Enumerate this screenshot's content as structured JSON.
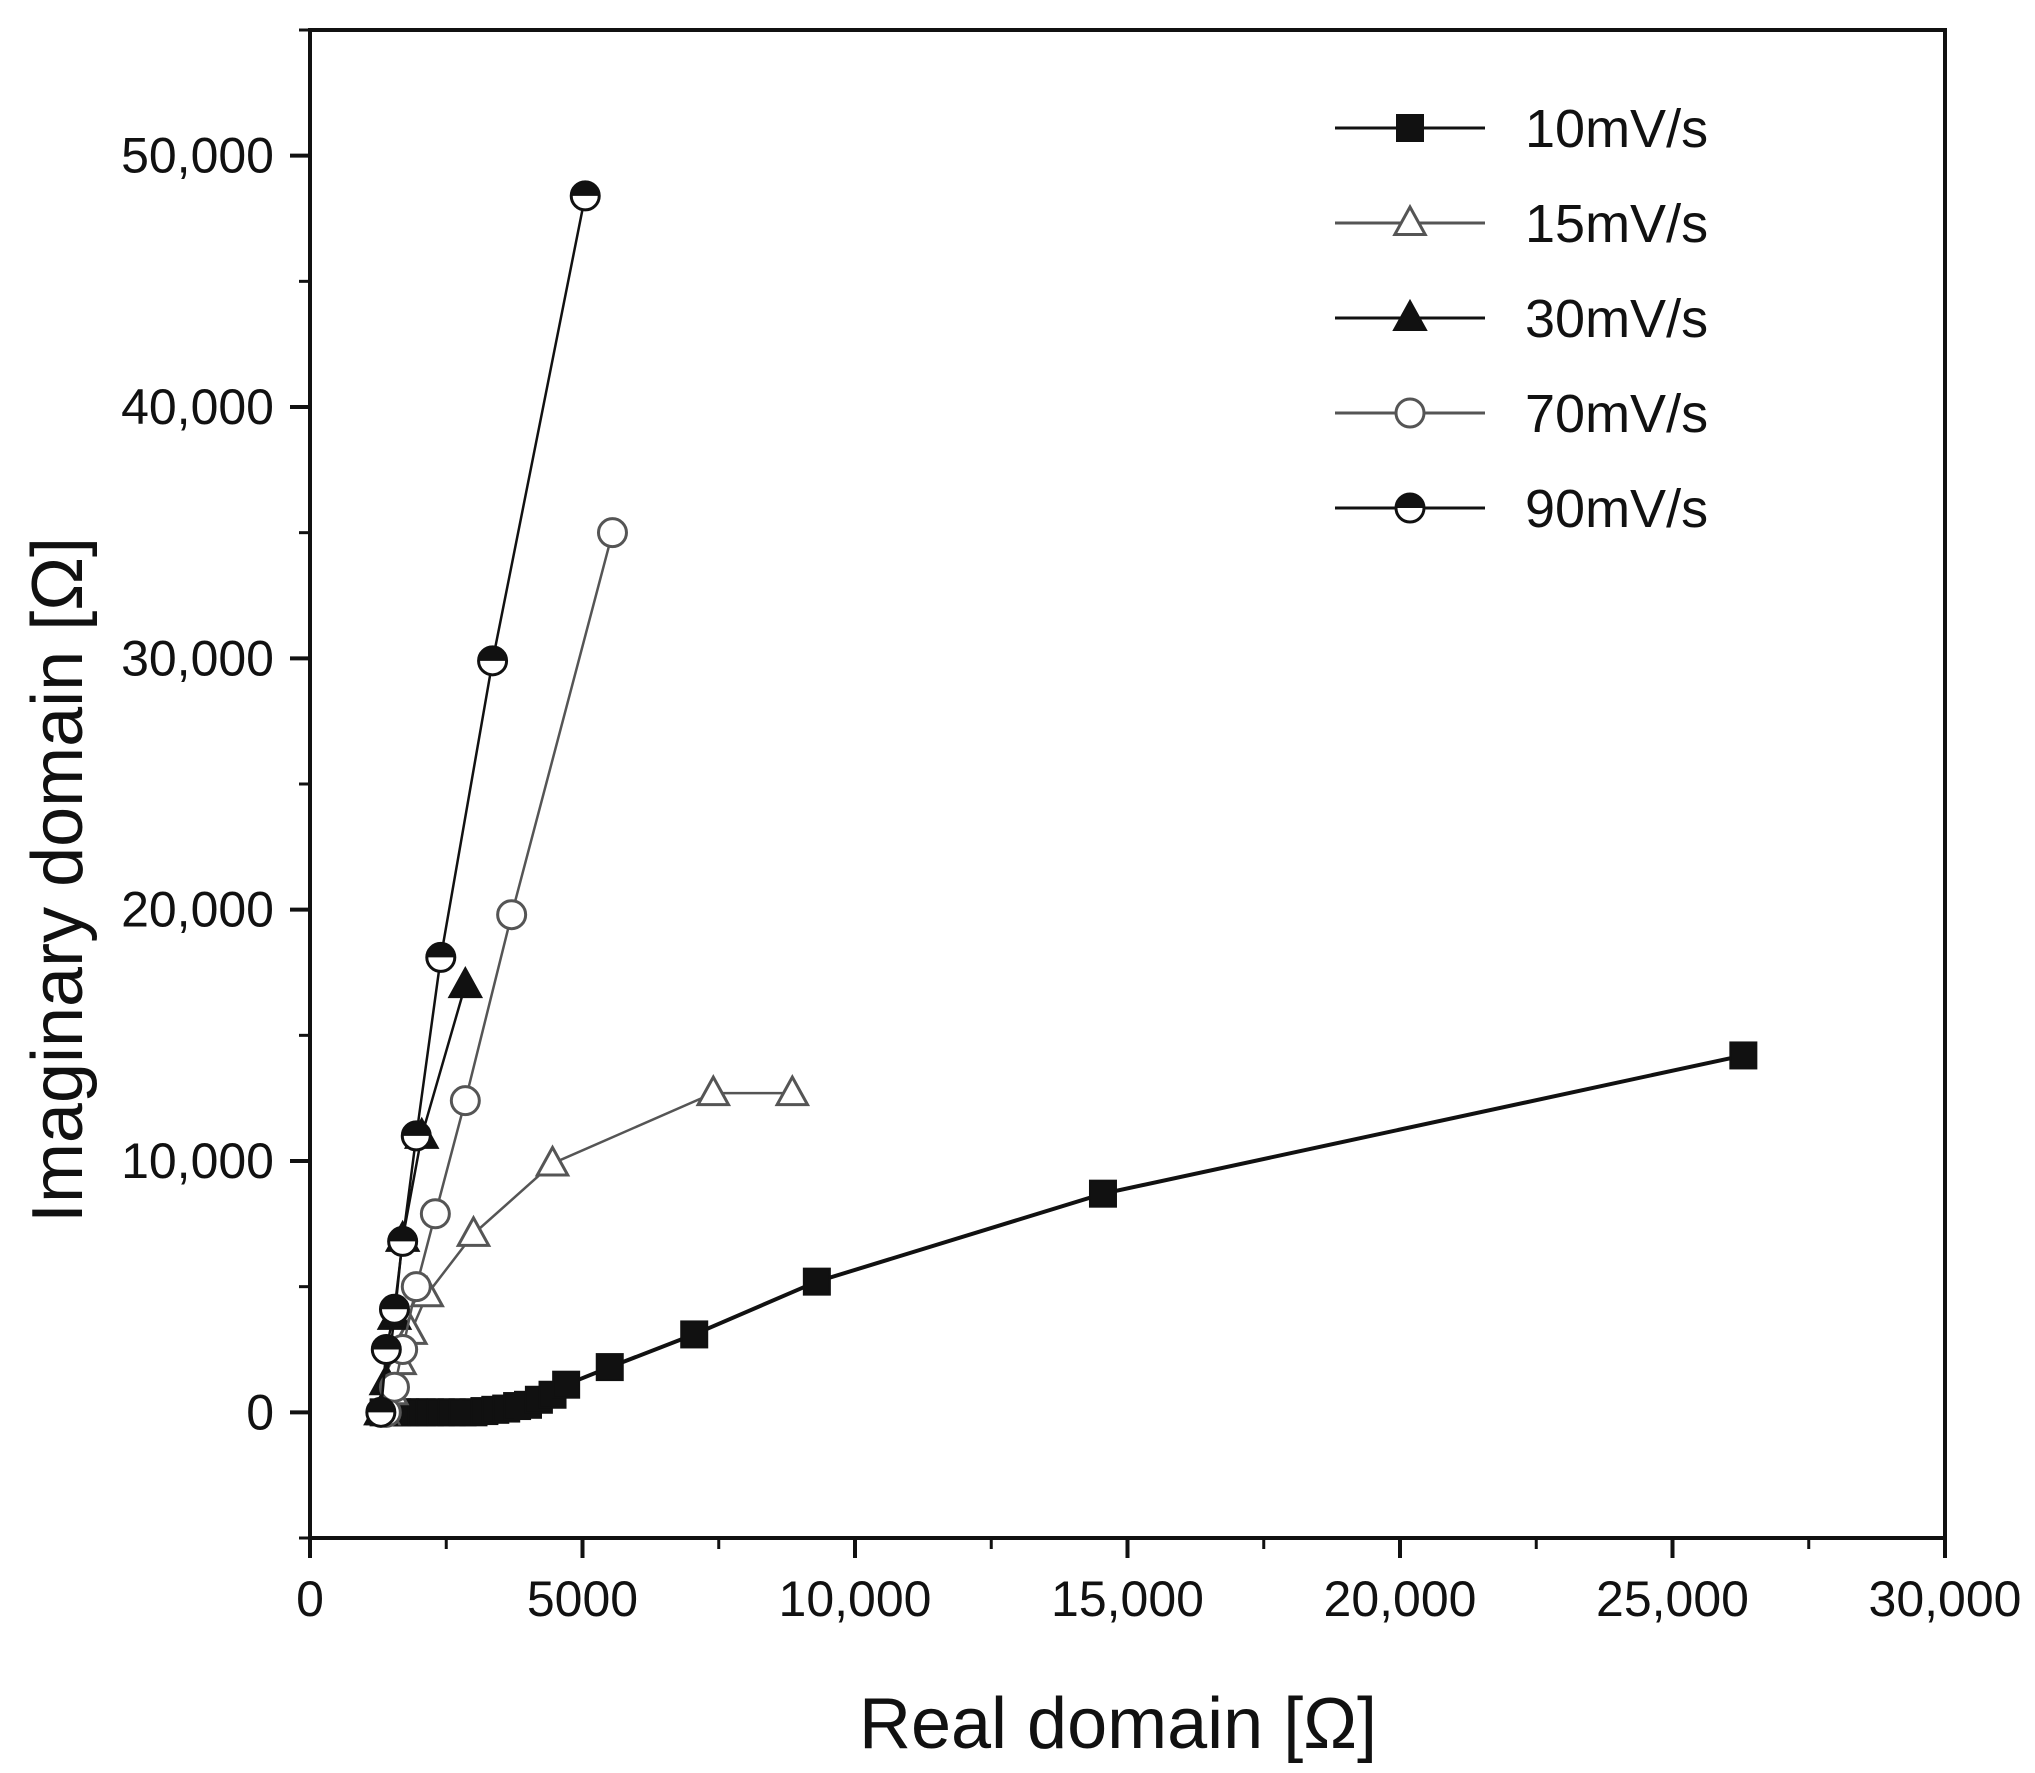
{
  "chart_data": {
    "type": "scatter",
    "title": "",
    "xlabel": "Real domain [Ω]",
    "ylabel": "Imaginary domain [Ω]",
    "xlim": [
      0,
      30000
    ],
    "ylim": [
      -5000,
      55000
    ],
    "x_ticks": [
      {
        "value": 0,
        "label": "0"
      },
      {
        "value": 5000,
        "label": "5000"
      },
      {
        "value": 10000,
        "label": "10,000"
      },
      {
        "value": 15000,
        "label": "15,000"
      },
      {
        "value": 20000,
        "label": "20,000"
      },
      {
        "value": 25000,
        "label": "25,000"
      },
      {
        "value": 30000,
        "label": "30,000"
      }
    ],
    "y_ticks": [
      {
        "value": 0,
        "label": "0"
      },
      {
        "value": 10000,
        "label": "10,000"
      },
      {
        "value": 20000,
        "label": "20,000"
      },
      {
        "value": 30000,
        "label": "30,000"
      },
      {
        "value": 40000,
        "label": "40,000"
      },
      {
        "value": 50000,
        "label": "50,000"
      }
    ],
    "grid": false,
    "legend_position": "top-right",
    "series": [
      {
        "name": "10mV/s",
        "marker": "filled-square",
        "color": "#111111",
        "x": [
          1350,
          1450,
          1600,
          1750,
          1900,
          2050,
          2200,
          2400,
          2600,
          2800,
          3000,
          3200,
          3400,
          3600,
          3800,
          4000,
          4200,
          4450,
          4700,
          5500,
          7050,
          9300,
          14550,
          26300
        ],
        "y": [
          0,
          0,
          0,
          0,
          0,
          0,
          0,
          0,
          0,
          0,
          0,
          50,
          100,
          150,
          250,
          300,
          500,
          700,
          1100,
          1800,
          3100,
          5200,
          8700,
          14200
        ]
      },
      {
        "name": "15mV/s",
        "marker": "open-triangle",
        "color": "#555555",
        "x": [
          1350,
          1500,
          1650,
          1850,
          2150,
          3000,
          4450,
          7400,
          8850
        ],
        "y": [
          0,
          800,
          2000,
          3200,
          4700,
          7100,
          9900,
          12700,
          12700
        ]
      },
      {
        "name": "30mV/s",
        "marker": "filled-triangle",
        "color": "#111111",
        "x": [
          1300,
          1400,
          1550,
          1700,
          2050,
          2850
        ],
        "y": [
          0,
          1200,
          3800,
          6900,
          11000,
          17000
        ]
      },
      {
        "name": "70mV/s",
        "marker": "open-circle",
        "color": "#555555",
        "x": [
          1400,
          1550,
          1700,
          1950,
          2300,
          2850,
          3700,
          5550
        ],
        "y": [
          0,
          1000,
          2500,
          5000,
          7900,
          12400,
          19800,
          35000
        ]
      },
      {
        "name": "90mV/s",
        "marker": "half-filled-circle",
        "color": "#111111",
        "x": [
          1300,
          1400,
          1550,
          1700,
          1950,
          2400,
          3350,
          5050
        ],
        "y": [
          0,
          2500,
          4100,
          6800,
          11000,
          18100,
          29900,
          48400
        ]
      }
    ]
  }
}
